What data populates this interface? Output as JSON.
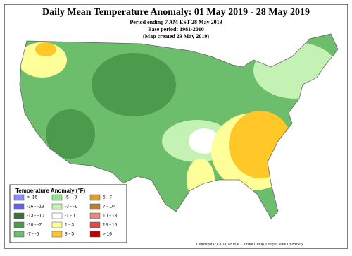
{
  "header": {
    "title": "Daily Mean Temperature Anomaly: 01 May 2019 - 28 May 2019",
    "line1": "Period ending 7 AM EST 28 May 2019",
    "line2": "Base period: 1981-2010",
    "line3": "(Map created 29 May 2019)"
  },
  "legend": {
    "title": "Temperature Anomaly (°F)",
    "items": [
      {
        "label": "< -16",
        "color": "#8c8cf0"
      },
      {
        "label": "-16 - -13",
        "color": "#6464e0"
      },
      {
        "label": "-13 - -10",
        "color": "#3f6f3f"
      },
      {
        "label": "-10 - -7",
        "color": "#4c9a4c"
      },
      {
        "label": "-7 - -5",
        "color": "#6cbd6c"
      },
      {
        "label": "-5 - -3",
        "color": "#94e08c"
      },
      {
        "label": "-3 - -1",
        "color": "#c4f2b4"
      },
      {
        "label": "-1 - 1",
        "color": "#ffffff"
      },
      {
        "label": "1 - 3",
        "color": "#ffff99"
      },
      {
        "label": "3 - 5",
        "color": "#ffc828"
      },
      {
        "label": "5 - 7",
        "color": "#d9a030"
      },
      {
        "label": "7 - 10",
        "color": "#b88030"
      },
      {
        "label": "10 - 13",
        "color": "#e08a8a"
      },
      {
        "label": "13 - 16",
        "color": "#e04848"
      },
      {
        "label": "> 16",
        "color": "#c00000"
      }
    ]
  },
  "footer": {
    "copyright": "Copyright (c) 2019, PRISM Climate Group, Oregon State University"
  }
}
